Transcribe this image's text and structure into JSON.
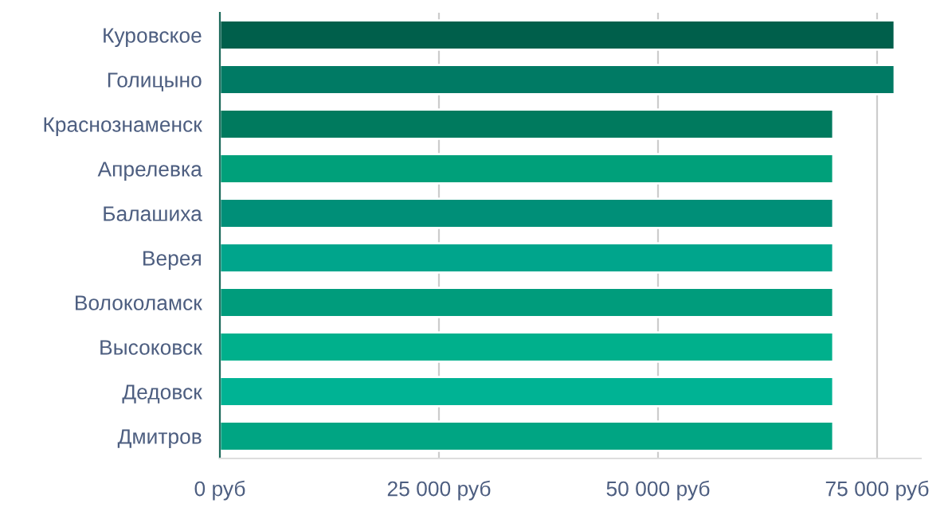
{
  "chart_data": {
    "type": "bar",
    "orientation": "horizontal",
    "categories": [
      "Куровское",
      "Голицыно",
      "Краснознаменск",
      "Апрелевка",
      "Балашиха",
      "Верея",
      "Волоколамск",
      "Высоковск",
      "Дедовск",
      "Дмитров"
    ],
    "values": [
      77000,
      77000,
      70000,
      70000,
      70000,
      70000,
      70000,
      70000,
      70000,
      70000
    ],
    "colors": [
      "#005f4b",
      "#007a64",
      "#007a5e",
      "#00a07a",
      "#008f78",
      "#00a58c",
      "#009c7c",
      "#00b08c",
      "#00b394",
      "#00a583"
    ],
    "xlim": [
      0,
      80000
    ],
    "xticks": [
      {
        "value": 0,
        "label": "0 руб"
      },
      {
        "value": 25000,
        "label": "25 000 руб"
      },
      {
        "value": 50000,
        "label": "50 000 руб"
      },
      {
        "value": 75000,
        "label": "75 000 руб"
      }
    ],
    "grid": "x",
    "legend": false
  }
}
